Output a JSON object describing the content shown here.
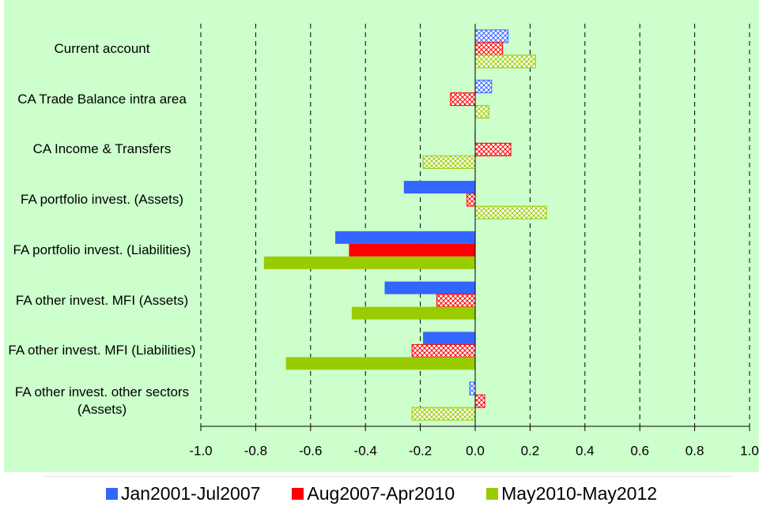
{
  "chart_data": {
    "type": "hbar",
    "categories": [
      "Current account",
      "CA Trade Balance intra area",
      "CA Income & Transfers",
      "FA portfolio invest. (Assets)",
      "FA portfolio invest. (Liabilities)",
      "FA other invest. MFI (Assets)",
      "FA other invest. MFI (Liabilities)",
      "FA other invest. other sectors (Assets)"
    ],
    "series": [
      {
        "name": "Jan2001-Jul2007",
        "color": "#3366ff",
        "values": [
          0.12,
          0.06,
          -0.002,
          -0.26,
          -0.51,
          -0.33,
          -0.19,
          -0.02
        ],
        "hatched": [
          true,
          true,
          false,
          false,
          false,
          false,
          false,
          true
        ]
      },
      {
        "name": "Aug2007-Apr2010",
        "color": "#ff0000",
        "values": [
          0.1,
          -0.09,
          0.13,
          -0.03,
          -0.46,
          -0.14,
          -0.23,
          0.035
        ],
        "hatched": [
          true,
          true,
          true,
          true,
          false,
          true,
          true,
          true
        ]
      },
      {
        "name": "May2010-May2012",
        "color": "#99cc00",
        "values": [
          0.22,
          0.05,
          -0.19,
          0.26,
          -0.77,
          -0.45,
          -0.69,
          -0.23
        ],
        "hatched": [
          true,
          true,
          true,
          true,
          false,
          false,
          false,
          true
        ]
      }
    ],
    "xlim": [
      -1,
      1
    ],
    "xticks": [
      {
        "value": -1,
        "label": "-1.0"
      },
      -0.8,
      -0.6,
      -0.4,
      -0.2,
      {
        "value": 0,
        "label": "0.0"
      },
      0.2,
      0.4,
      0.6,
      0.8,
      {
        "value": 1,
        "label": "1.0"
      }
    ],
    "grid": true
  }
}
